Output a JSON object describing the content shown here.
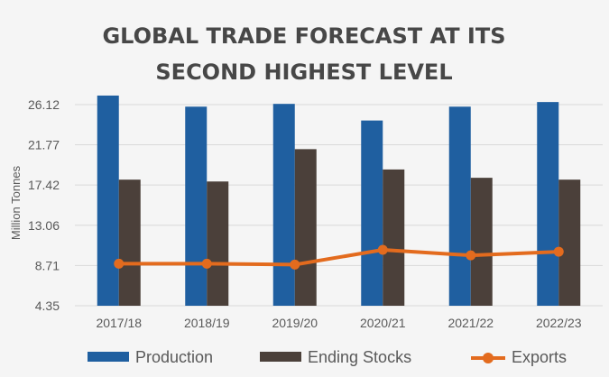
{
  "chart_data": {
    "type": "bar",
    "title_lines": [
      "GLOBAL TRADE FORECAST AT ITS",
      "SECOND HIGHEST LEVEL"
    ],
    "ylabel": "Million Tonnes",
    "y_ticks": [
      "4.35",
      "8.71",
      "13.06",
      "17.42",
      "21.77",
      "26.12"
    ],
    "ylim": [
      4.35,
      26.12
    ],
    "categories": [
      "2017/18",
      "2018/19",
      "2019/20",
      "2020/21",
      "2021/22",
      "2022/23"
    ],
    "series": [
      {
        "name": "Production",
        "kind": "bar",
        "color": "#1f5fa0",
        "values": [
          27.1,
          25.9,
          26.2,
          24.4,
          25.9,
          26.4
        ]
      },
      {
        "name": "Ending Stocks",
        "kind": "bar",
        "color": "#4b403a",
        "values": [
          18.0,
          17.8,
          21.3,
          19.1,
          18.2,
          18.0
        ]
      },
      {
        "name": "Exports",
        "kind": "line",
        "color": "#e36b1e",
        "values": [
          8.9,
          8.9,
          8.8,
          10.4,
          9.8,
          10.2
        ]
      }
    ]
  }
}
